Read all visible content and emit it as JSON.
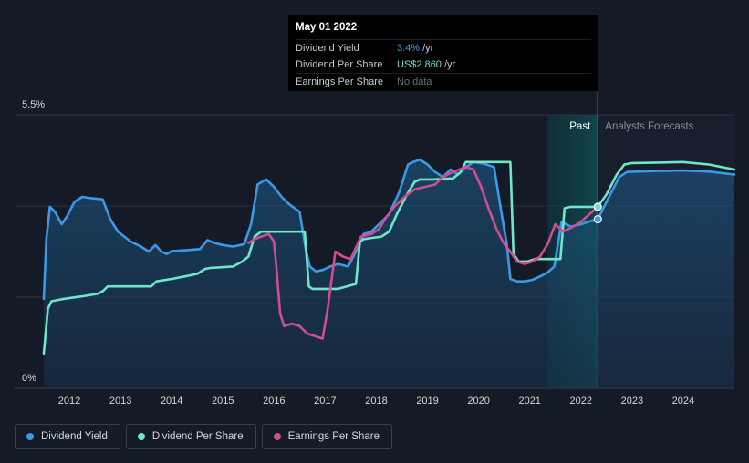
{
  "tooltip": {
    "date": "May 01 2022",
    "rows": [
      {
        "label": "Dividend Yield",
        "value": "3.4%",
        "unit": "/yr",
        "color": "#3b9ae8"
      },
      {
        "label": "Dividend Per Share",
        "value": "US$2.860",
        "unit": "/yr",
        "color": "#6ee6c9"
      },
      {
        "label": "Earnings Per Share",
        "value": "No data",
        "unit": "",
        "color": "#6a6f78"
      }
    ]
  },
  "legend": [
    {
      "label": "Dividend Yield",
      "color": "#3b9ae8"
    },
    {
      "label": "Dividend Per Share",
      "color": "#6ee6c9"
    },
    {
      "label": "Earnings Per Share",
      "color": "#d24c8f"
    }
  ],
  "chart_data": {
    "type": "line",
    "x_ticks": [
      "2012",
      "2013",
      "2014",
      "2015",
      "2016",
      "2017",
      "2018",
      "2019",
      "2020",
      "2021",
      "2022",
      "2023",
      "2024"
    ],
    "y_ticks": [
      "5.5%",
      "0%"
    ],
    "ylim": [
      0,
      5.5
    ],
    "xlim": [
      2011.5,
      2025.0
    ],
    "regions": {
      "past": "Past",
      "forecast": "Analysts Forecasts",
      "past_start": 2021.35,
      "divider": 2022.33
    },
    "series": [
      {
        "name": "Dividend Yield",
        "color": "#3b9ae8",
        "fill": true,
        "points": [
          [
            2011.5,
            1.8
          ],
          [
            2011.55,
            3.0
          ],
          [
            2011.62,
            3.65
          ],
          [
            2011.72,
            3.55
          ],
          [
            2011.85,
            3.3
          ],
          [
            2011.95,
            3.45
          ],
          [
            2012.1,
            3.75
          ],
          [
            2012.25,
            3.85
          ],
          [
            2012.45,
            3.82
          ],
          [
            2012.65,
            3.8
          ],
          [
            2012.8,
            3.4
          ],
          [
            2012.95,
            3.15
          ],
          [
            2013.2,
            2.95
          ],
          [
            2013.4,
            2.85
          ],
          [
            2013.55,
            2.75
          ],
          [
            2013.68,
            2.88
          ],
          [
            2013.8,
            2.75
          ],
          [
            2013.9,
            2.7
          ],
          [
            2014.0,
            2.76
          ],
          [
            2014.3,
            2.78
          ],
          [
            2014.55,
            2.8
          ],
          [
            2014.7,
            2.98
          ],
          [
            2014.85,
            2.92
          ],
          [
            2015.0,
            2.88
          ],
          [
            2015.2,
            2.85
          ],
          [
            2015.42,
            2.9
          ],
          [
            2015.55,
            3.3
          ],
          [
            2015.68,
            4.1
          ],
          [
            2015.85,
            4.2
          ],
          [
            2016.0,
            4.05
          ],
          [
            2016.15,
            3.85
          ],
          [
            2016.3,
            3.7
          ],
          [
            2016.5,
            3.55
          ],
          [
            2016.62,
            2.8
          ],
          [
            2016.7,
            2.45
          ],
          [
            2016.82,
            2.35
          ],
          [
            2016.95,
            2.38
          ],
          [
            2017.1,
            2.45
          ],
          [
            2017.25,
            2.5
          ],
          [
            2017.45,
            2.45
          ],
          [
            2017.6,
            2.75
          ],
          [
            2017.75,
            3.1
          ],
          [
            2017.9,
            3.15
          ],
          [
            2018.05,
            3.3
          ],
          [
            2018.25,
            3.5
          ],
          [
            2018.45,
            3.95
          ],
          [
            2018.62,
            4.5
          ],
          [
            2018.72,
            4.55
          ],
          [
            2018.85,
            4.6
          ],
          [
            2019.0,
            4.5
          ],
          [
            2019.15,
            4.35
          ],
          [
            2019.3,
            4.25
          ],
          [
            2019.45,
            4.4
          ],
          [
            2019.6,
            4.3
          ],
          [
            2019.75,
            4.45
          ],
          [
            2019.9,
            4.55
          ],
          [
            2020.1,
            4.52
          ],
          [
            2020.3,
            4.45
          ],
          [
            2020.45,
            3.5
          ],
          [
            2020.55,
            2.9
          ],
          [
            2020.62,
            2.2
          ],
          [
            2020.75,
            2.15
          ],
          [
            2020.9,
            2.15
          ],
          [
            2021.05,
            2.18
          ],
          [
            2021.2,
            2.25
          ],
          [
            2021.35,
            2.33
          ],
          [
            2021.48,
            2.45
          ],
          [
            2021.62,
            3.35
          ],
          [
            2021.8,
            3.25
          ],
          [
            2022.0,
            3.3
          ],
          [
            2022.15,
            3.35
          ],
          [
            2022.33,
            3.4
          ],
          [
            2022.55,
            3.85
          ],
          [
            2022.75,
            4.25
          ],
          [
            2022.9,
            4.35
          ],
          [
            2023.5,
            4.37
          ],
          [
            2024.0,
            4.38
          ],
          [
            2024.5,
            4.36
          ],
          [
            2025.0,
            4.3
          ]
        ]
      },
      {
        "name": "Dividend Per Share",
        "color": "#6ee6c9",
        "fill": false,
        "points": [
          [
            2011.5,
            0.7
          ],
          [
            2011.58,
            1.6
          ],
          [
            2011.65,
            1.75
          ],
          [
            2011.9,
            1.8
          ],
          [
            2012.25,
            1.85
          ],
          [
            2012.55,
            1.9
          ],
          [
            2012.65,
            1.95
          ],
          [
            2012.75,
            2.05
          ],
          [
            2013.2,
            2.05
          ],
          [
            2013.6,
            2.05
          ],
          [
            2013.7,
            2.15
          ],
          [
            2014.0,
            2.2
          ],
          [
            2014.25,
            2.25
          ],
          [
            2014.5,
            2.3
          ],
          [
            2014.65,
            2.4
          ],
          [
            2014.75,
            2.42
          ],
          [
            2015.2,
            2.45
          ],
          [
            2015.38,
            2.55
          ],
          [
            2015.5,
            2.65
          ],
          [
            2015.62,
            3.05
          ],
          [
            2015.75,
            3.15
          ],
          [
            2016.15,
            3.15
          ],
          [
            2016.6,
            3.15
          ],
          [
            2016.68,
            2.05
          ],
          [
            2016.75,
            2.0
          ],
          [
            2017.25,
            2.0
          ],
          [
            2017.6,
            2.1
          ],
          [
            2017.68,
            2.95
          ],
          [
            2017.75,
            3.0
          ],
          [
            2018.1,
            3.05
          ],
          [
            2018.25,
            3.15
          ],
          [
            2018.4,
            3.5
          ],
          [
            2018.6,
            3.9
          ],
          [
            2018.75,
            4.15
          ],
          [
            2018.85,
            4.2
          ],
          [
            2019.1,
            4.2
          ],
          [
            2019.5,
            4.22
          ],
          [
            2019.65,
            4.35
          ],
          [
            2019.75,
            4.55
          ],
          [
            2020.2,
            4.55
          ],
          [
            2020.62,
            4.55
          ],
          [
            2020.68,
            2.7
          ],
          [
            2020.78,
            2.55
          ],
          [
            2020.95,
            2.55
          ],
          [
            2021.1,
            2.6
          ],
          [
            2021.35,
            2.6
          ],
          [
            2021.6,
            2.6
          ],
          [
            2021.68,
            3.62
          ],
          [
            2021.8,
            3.65
          ],
          [
            2022.33,
            3.65
          ],
          [
            2022.5,
            3.9
          ],
          [
            2022.7,
            4.3
          ],
          [
            2022.85,
            4.5
          ],
          [
            2023.0,
            4.53
          ],
          [
            2023.5,
            4.54
          ],
          [
            2024.0,
            4.55
          ],
          [
            2024.5,
            4.5
          ],
          [
            2025.0,
            4.4
          ]
        ]
      },
      {
        "name": "Earnings Per Share",
        "color": "#d24c8f",
        "fill": false,
        "points": [
          [
            2015.5,
            2.92
          ],
          [
            2015.62,
            3.0
          ],
          [
            2015.75,
            3.05
          ],
          [
            2015.9,
            3.1
          ],
          [
            2016.0,
            2.95
          ],
          [
            2016.05,
            2.4
          ],
          [
            2016.12,
            1.5
          ],
          [
            2016.2,
            1.25
          ],
          [
            2016.35,
            1.3
          ],
          [
            2016.5,
            1.25
          ],
          [
            2016.65,
            1.1
          ],
          [
            2016.8,
            1.05
          ],
          [
            2016.95,
            1.0
          ],
          [
            2017.05,
            1.6
          ],
          [
            2017.2,
            2.75
          ],
          [
            2017.35,
            2.65
          ],
          [
            2017.5,
            2.6
          ],
          [
            2017.7,
            3.05
          ],
          [
            2017.9,
            3.1
          ],
          [
            2018.05,
            3.2
          ],
          [
            2018.2,
            3.45
          ],
          [
            2018.35,
            3.65
          ],
          [
            2018.55,
            3.85
          ],
          [
            2018.75,
            4.0
          ],
          [
            2018.95,
            4.05
          ],
          [
            2019.15,
            4.1
          ],
          [
            2019.3,
            4.25
          ],
          [
            2019.5,
            4.35
          ],
          [
            2019.75,
            4.45
          ],
          [
            2019.9,
            4.4
          ],
          [
            2020.05,
            4.05
          ],
          [
            2020.2,
            3.6
          ],
          [
            2020.35,
            3.2
          ],
          [
            2020.5,
            2.9
          ],
          [
            2020.62,
            2.75
          ],
          [
            2020.75,
            2.55
          ],
          [
            2020.9,
            2.5
          ],
          [
            2021.05,
            2.55
          ],
          [
            2021.2,
            2.65
          ],
          [
            2021.35,
            2.9
          ],
          [
            2021.5,
            3.3
          ],
          [
            2021.65,
            3.15
          ],
          [
            2021.85,
            3.25
          ],
          [
            2022.0,
            3.35
          ],
          [
            2022.33,
            3.65
          ]
        ]
      }
    ],
    "markers": [
      {
        "series": "Dividend Per Share",
        "x": 2022.33,
        "y": 3.65
      },
      {
        "series": "Dividend Yield",
        "x": 2022.33,
        "y": 3.4
      }
    ]
  }
}
